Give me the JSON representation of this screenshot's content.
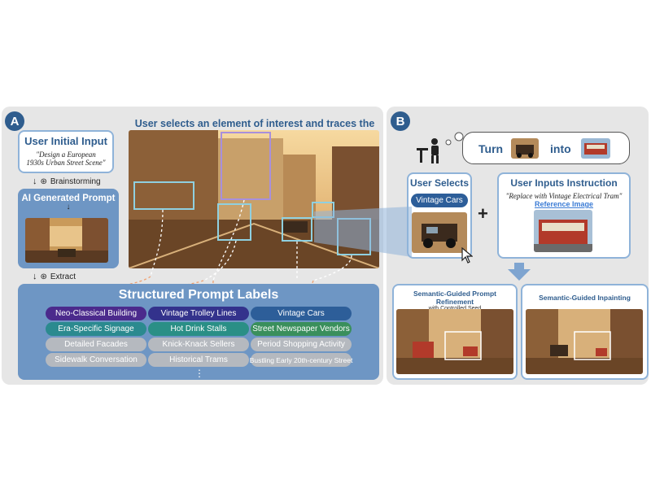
{
  "panel_a": {
    "badge": "A",
    "header": "User selects an element of interest and traces the label",
    "user_input_title": "User Initial Input",
    "user_input_quote_1": "\"Design a European",
    "user_input_quote_2": "1930s Urban Street Scene\"",
    "step_brainstorm": "Brainstorming",
    "ai_prompt_title": "AI Generated Prompt",
    "step_extract": "Extract",
    "labels_title": "Structured Prompt Labels",
    "labels": [
      [
        "Neo-Classical Building",
        "Vintage Trolley Lines",
        "Vintage Cars"
      ],
      [
        "Era-Specific Signage",
        "Hot Drink Stalls",
        "Street Newspaper Vendors"
      ],
      [
        "Detailed Facades",
        "Knick-Knack Sellers",
        "Period Shopping Activity"
      ],
      [
        "Sidewalk Conversation",
        "Historical Trams",
        "Bustling Early 20th-century Street"
      ]
    ],
    "more": "⋮"
  },
  "panel_b": {
    "badge": "B",
    "turn_word": "Turn",
    "into_word": "into",
    "user_selects_title": "User Selects",
    "selected_label": "Vintage Cars",
    "instruction_title": "User Inputs Instruction",
    "instruction_quote": "\"Replace with Vintage Electrical Tram\"",
    "reference_label": "Reference Image",
    "refine_title": "Semantic-Guided Prompt Refinement",
    "refine_sub": "with Controlled Seed",
    "inpaint_title": "Semantic-Guided Inpainting",
    "plus": "+"
  },
  "colors": {
    "accent": "#2f5d8e",
    "purple": "#4b2a8c",
    "indigo": "#33328c",
    "blue": "#2d5e99",
    "teal": "#2b8a8f",
    "teal2": "#2a8f86",
    "green": "#3a8f5c",
    "gray_pill": "#b5b9bf",
    "dashed": "#f0a070"
  }
}
